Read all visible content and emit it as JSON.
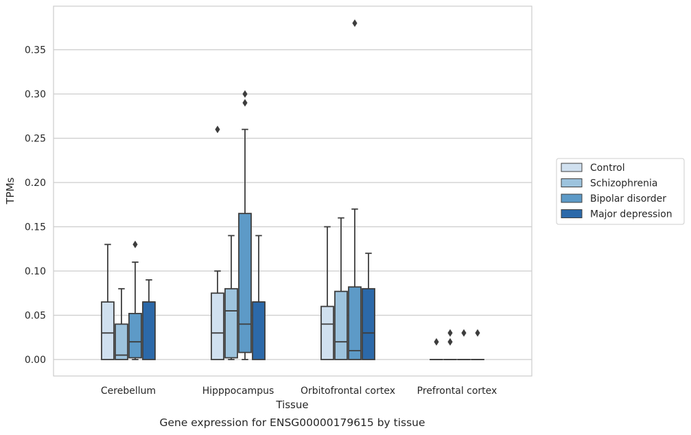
{
  "chart_data": {
    "type": "box",
    "xlabel": "Tissue",
    "ylabel": "TPMs",
    "caption": "Gene expression for ENSG00000179615 by tissue",
    "ylim": [
      -0.018,
      0.398
    ],
    "yticks": [
      "0.00",
      "0.05",
      "0.10",
      "0.15",
      "0.20",
      "0.25",
      "0.30",
      "0.35"
    ],
    "grid": "horizontal",
    "legend_position": "right",
    "categories": [
      "Cerebellum",
      "Hipppocampus",
      "Orbitofrontal cortex",
      "Prefrontal cortex"
    ],
    "series": [
      {
        "name": "Control",
        "color": "#d0e0ef",
        "boxes": [
          {
            "q1": 0.0,
            "median": 0.03,
            "q3": 0.065,
            "whislo": 0.0,
            "whishi": 0.13,
            "fliers": []
          },
          {
            "q1": 0.0,
            "median": 0.03,
            "q3": 0.075,
            "whislo": 0.0,
            "whishi": 0.1,
            "fliers": [
              0.26
            ]
          },
          {
            "q1": 0.0,
            "median": 0.04,
            "q3": 0.06,
            "whislo": 0.0,
            "whishi": 0.15,
            "fliers": []
          },
          {
            "q1": 0.0,
            "median": 0.0,
            "q3": 0.0,
            "whislo": 0.0,
            "whishi": 0.0,
            "fliers": [
              0.02
            ]
          }
        ]
      },
      {
        "name": "Schizophrenia",
        "color": "#9dc3dd",
        "boxes": [
          {
            "q1": 0.0,
            "median": 0.005,
            "q3": 0.04,
            "whislo": 0.0,
            "whishi": 0.08,
            "fliers": []
          },
          {
            "q1": 0.002,
            "median": 0.055,
            "q3": 0.08,
            "whislo": 0.0,
            "whishi": 0.14,
            "fliers": []
          },
          {
            "q1": 0.0,
            "median": 0.02,
            "q3": 0.077,
            "whislo": 0.0,
            "whishi": 0.16,
            "fliers": []
          },
          {
            "q1": 0.0,
            "median": 0.0,
            "q3": 0.0,
            "whislo": 0.0,
            "whishi": 0.0,
            "fliers": [
              0.02,
              0.03
            ]
          }
        ]
      },
      {
        "name": "Bipolar disorder",
        "color": "#5d9ac7",
        "boxes": [
          {
            "q1": 0.002,
            "median": 0.02,
            "q3": 0.052,
            "whislo": 0.0,
            "whishi": 0.11,
            "fliers": [
              0.13
            ]
          },
          {
            "q1": 0.008,
            "median": 0.04,
            "q3": 0.165,
            "whislo": 0.0,
            "whishi": 0.26,
            "fliers": [
              0.29,
              0.3
            ]
          },
          {
            "q1": 0.0,
            "median": 0.01,
            "q3": 0.082,
            "whislo": 0.0,
            "whishi": 0.17,
            "fliers": [
              0.38
            ]
          },
          {
            "q1": 0.0,
            "median": 0.0,
            "q3": 0.0,
            "whislo": 0.0,
            "whishi": 0.0,
            "fliers": [
              0.03
            ]
          }
        ]
      },
      {
        "name": "Major depression",
        "color": "#2c69a9",
        "boxes": [
          {
            "q1": 0.0,
            "median": 0.065,
            "q3": 0.065,
            "whislo": 0.0,
            "whishi": 0.09,
            "fliers": []
          },
          {
            "q1": 0.0,
            "median": 0.065,
            "q3": 0.065,
            "whislo": 0.0,
            "whishi": 0.14,
            "fliers": []
          },
          {
            "q1": 0.0,
            "median": 0.03,
            "q3": 0.08,
            "whislo": 0.0,
            "whishi": 0.12,
            "fliers": []
          },
          {
            "q1": 0.0,
            "median": 0.0,
            "q3": 0.0,
            "whislo": 0.0,
            "whishi": 0.0,
            "fliers": [
              0.03
            ]
          }
        ]
      }
    ]
  }
}
